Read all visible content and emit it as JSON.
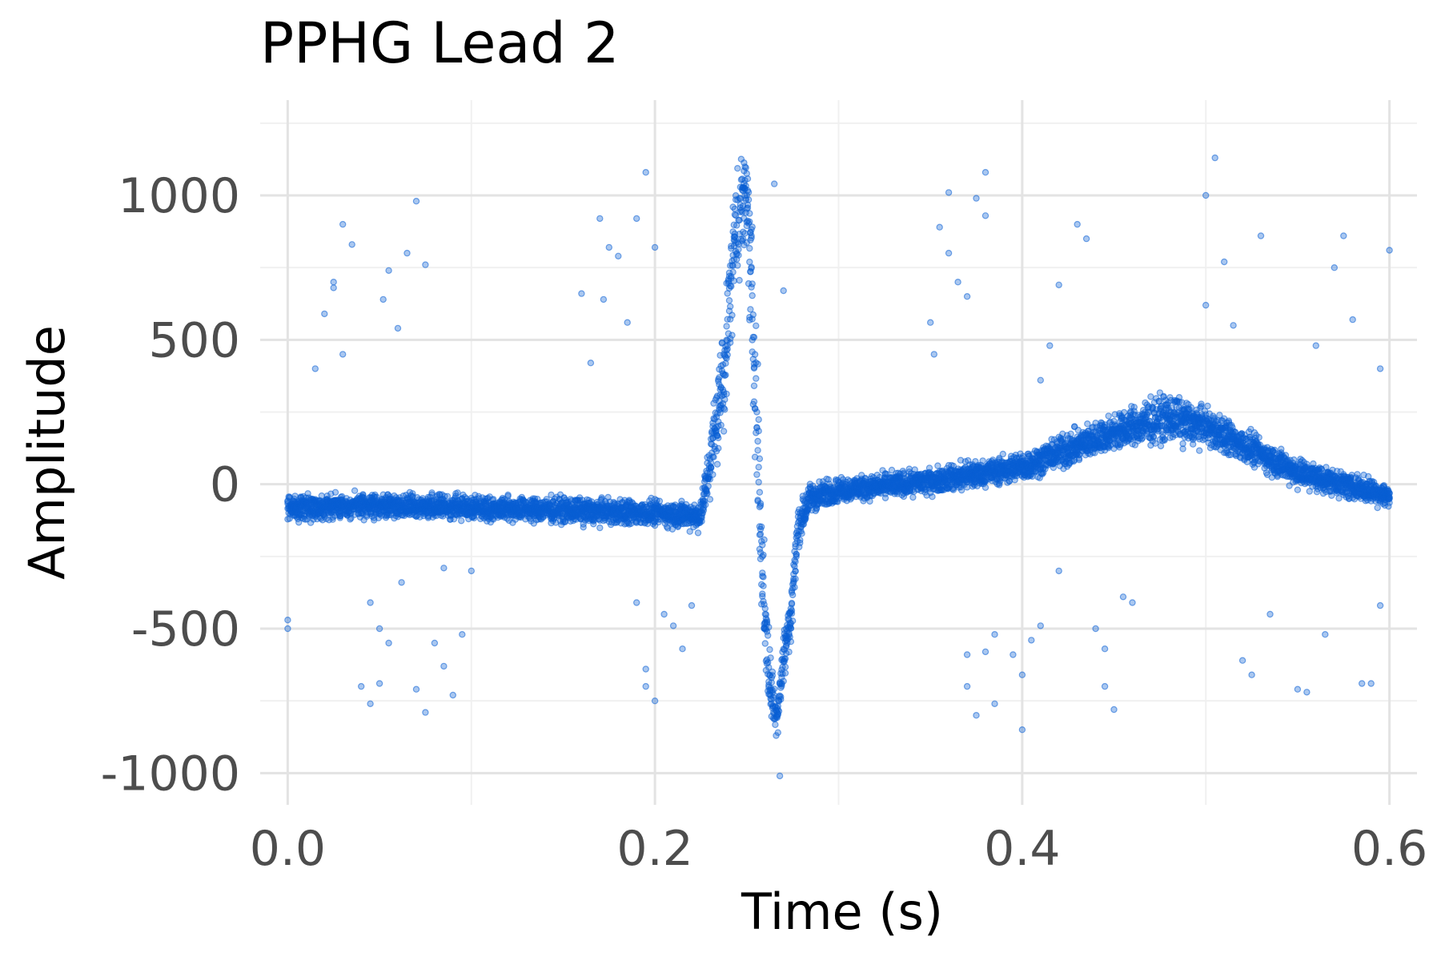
{
  "chart_data": {
    "type": "scatter",
    "title": "PPHG Lead 2",
    "xlabel": "Time (s)",
    "ylabel": "Amplitude",
    "xlim": [
      -0.015,
      0.615
    ],
    "ylim": [
      -1110,
      1330
    ],
    "xticks": [
      0.0,
      0.2,
      0.4,
      0.6
    ],
    "xtick_labels": [
      "0.0",
      "0.2",
      "0.4",
      "0.6"
    ],
    "yticks": [
      -1000,
      -500,
      0,
      500,
      1000
    ],
    "ytick_labels": [
      "-1000",
      "-500",
      "0",
      "500",
      "1000"
    ],
    "grid": true,
    "legend": "none",
    "point_color": "#0a5fd4",
    "envelope": {
      "x": [
        0.0,
        0.05,
        0.1,
        0.15,
        0.2,
        0.225,
        0.232,
        0.238,
        0.244,
        0.25,
        0.254,
        0.258,
        0.262,
        0.266,
        0.27,
        0.274,
        0.278,
        0.284,
        0.3,
        0.35,
        0.4,
        0.45,
        0.48,
        0.5,
        0.55,
        0.6
      ],
      "center": [
        -80,
        -75,
        -80,
        -90,
        -100,
        -110,
        150,
        420,
        900,
        1000,
        500,
        -250,
        -650,
        -820,
        -600,
        -450,
        -150,
        -50,
        -20,
        10,
        60,
        180,
        230,
        200,
        40,
        -40
      ],
      "spread": [
        60,
        60,
        60,
        60,
        60,
        70,
        200,
        300,
        300,
        250,
        500,
        300,
        200,
        100,
        150,
        150,
        100,
        70,
        60,
        60,
        70,
        90,
        110,
        90,
        70,
        60
      ]
    },
    "outliers": [
      {
        "x": 0.0,
        "y": -470
      },
      {
        "x": 0.0,
        "y": -500
      },
      {
        "x": 0.015,
        "y": 400
      },
      {
        "x": 0.02,
        "y": 590
      },
      {
        "x": 0.025,
        "y": 700
      },
      {
        "x": 0.025,
        "y": 680
      },
      {
        "x": 0.03,
        "y": 900
      },
      {
        "x": 0.035,
        "y": 830
      },
      {
        "x": 0.03,
        "y": 450
      },
      {
        "x": 0.04,
        "y": -700
      },
      {
        "x": 0.045,
        "y": -410
      },
      {
        "x": 0.045,
        "y": -760
      },
      {
        "x": 0.05,
        "y": -500
      },
      {
        "x": 0.05,
        "y": -690
      },
      {
        "x": 0.052,
        "y": 640
      },
      {
        "x": 0.055,
        "y": 740
      },
      {
        "x": 0.055,
        "y": -550
      },
      {
        "x": 0.06,
        "y": 540
      },
      {
        "x": 0.062,
        "y": -340
      },
      {
        "x": 0.065,
        "y": 800
      },
      {
        "x": 0.07,
        "y": 980
      },
      {
        "x": 0.07,
        "y": -710
      },
      {
        "x": 0.075,
        "y": 760
      },
      {
        "x": 0.075,
        "y": -790
      },
      {
        "x": 0.08,
        "y": -550
      },
      {
        "x": 0.085,
        "y": -630
      },
      {
        "x": 0.085,
        "y": -290
      },
      {
        "x": 0.09,
        "y": -730
      },
      {
        "x": 0.095,
        "y": -520
      },
      {
        "x": 0.1,
        "y": -300
      },
      {
        "x": 0.16,
        "y": 660
      },
      {
        "x": 0.165,
        "y": 420
      },
      {
        "x": 0.17,
        "y": 920
      },
      {
        "x": 0.172,
        "y": 640
      },
      {
        "x": 0.175,
        "y": 820
      },
      {
        "x": 0.18,
        "y": 790
      },
      {
        "x": 0.185,
        "y": 560
      },
      {
        "x": 0.19,
        "y": 920
      },
      {
        "x": 0.19,
        "y": -410
      },
      {
        "x": 0.195,
        "y": -640
      },
      {
        "x": 0.195,
        "y": -700
      },
      {
        "x": 0.195,
        "y": 1080
      },
      {
        "x": 0.2,
        "y": 820
      },
      {
        "x": 0.2,
        "y": -750
      },
      {
        "x": 0.205,
        "y": -450
      },
      {
        "x": 0.21,
        "y": -490
      },
      {
        "x": 0.215,
        "y": -570
      },
      {
        "x": 0.22,
        "y": -420
      },
      {
        "x": 0.26,
        "y": -430
      },
      {
        "x": 0.265,
        "y": 1040
      },
      {
        "x": 0.27,
        "y": 670
      },
      {
        "x": 0.268,
        "y": -1010
      },
      {
        "x": 0.35,
        "y": 560
      },
      {
        "x": 0.352,
        "y": 450
      },
      {
        "x": 0.355,
        "y": 890
      },
      {
        "x": 0.36,
        "y": 1010
      },
      {
        "x": 0.36,
        "y": 800
      },
      {
        "x": 0.365,
        "y": 700
      },
      {
        "x": 0.37,
        "y": 650
      },
      {
        "x": 0.37,
        "y": -590
      },
      {
        "x": 0.37,
        "y": -700
      },
      {
        "x": 0.375,
        "y": -800
      },
      {
        "x": 0.375,
        "y": 990
      },
      {
        "x": 0.38,
        "y": 1080
      },
      {
        "x": 0.38,
        "y": 930
      },
      {
        "x": 0.38,
        "y": -580
      },
      {
        "x": 0.385,
        "y": -520
      },
      {
        "x": 0.385,
        "y": -760
      },
      {
        "x": 0.395,
        "y": -590
      },
      {
        "x": 0.4,
        "y": -660
      },
      {
        "x": 0.4,
        "y": -850
      },
      {
        "x": 0.405,
        "y": -540
      },
      {
        "x": 0.41,
        "y": -490
      },
      {
        "x": 0.41,
        "y": 360
      },
      {
        "x": 0.415,
        "y": 480
      },
      {
        "x": 0.42,
        "y": 690
      },
      {
        "x": 0.42,
        "y": -300
      },
      {
        "x": 0.43,
        "y": 900
      },
      {
        "x": 0.435,
        "y": 850
      },
      {
        "x": 0.44,
        "y": -500
      },
      {
        "x": 0.445,
        "y": -570
      },
      {
        "x": 0.445,
        "y": -700
      },
      {
        "x": 0.45,
        "y": -780
      },
      {
        "x": 0.455,
        "y": -390
      },
      {
        "x": 0.46,
        "y": -410
      },
      {
        "x": 0.5,
        "y": 1000
      },
      {
        "x": 0.505,
        "y": 1130
      },
      {
        "x": 0.5,
        "y": 620
      },
      {
        "x": 0.51,
        "y": 770
      },
      {
        "x": 0.515,
        "y": 550
      },
      {
        "x": 0.52,
        "y": -610
      },
      {
        "x": 0.525,
        "y": -660
      },
      {
        "x": 0.53,
        "y": 860
      },
      {
        "x": 0.535,
        "y": -450
      },
      {
        "x": 0.55,
        "y": -710
      },
      {
        "x": 0.555,
        "y": -720
      },
      {
        "x": 0.56,
        "y": 480
      },
      {
        "x": 0.565,
        "y": -520
      },
      {
        "x": 0.57,
        "y": 750
      },
      {
        "x": 0.575,
        "y": 860
      },
      {
        "x": 0.58,
        "y": 570
      },
      {
        "x": 0.585,
        "y": -690
      },
      {
        "x": 0.59,
        "y": -690
      },
      {
        "x": 0.595,
        "y": -420
      },
      {
        "x": 0.6,
        "y": 810
      },
      {
        "x": 0.595,
        "y": 400
      }
    ]
  }
}
